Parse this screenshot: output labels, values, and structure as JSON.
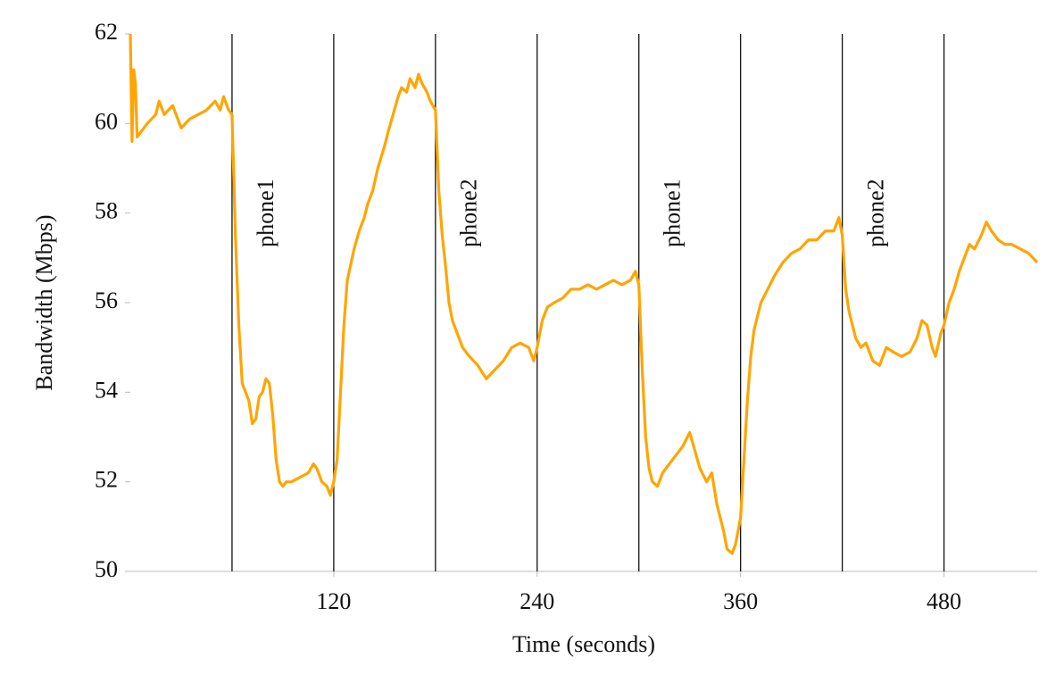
{
  "chart_data": {
    "type": "line",
    "x_label": "Time (seconds)",
    "y_label": "Bandwidth (Mbps)",
    "xlim": [
      0,
      535
    ],
    "ylim": [
      50,
      62
    ],
    "xticks": [
      120,
      240,
      360,
      480
    ],
    "yticks": [
      50,
      52,
      54,
      56,
      58,
      60,
      62
    ],
    "vlines": [
      60,
      120,
      180,
      240,
      300,
      360,
      420,
      480
    ],
    "vline_color": "#111111",
    "annotations": [
      {
        "text": "phone1",
        "x": 81,
        "y": 58
      },
      {
        "text": "phone2",
        "x": 201,
        "y": 58
      },
      {
        "text": "phone1",
        "x": 321,
        "y": 58
      },
      {
        "text": "phone2",
        "x": 441,
        "y": 58
      }
    ],
    "series": [
      {
        "color": "#ffa500",
        "x": [
          0,
          1,
          2,
          3,
          4,
          6,
          10,
          15,
          17,
          20,
          25,
          28,
          30,
          35,
          40,
          45,
          50,
          53,
          55,
          58,
          60,
          62,
          64,
          66,
          68,
          70,
          72,
          74,
          76,
          78,
          80,
          82,
          84,
          86,
          88,
          90,
          92,
          95,
          100,
          105,
          108,
          110,
          113,
          116,
          118,
          120,
          122,
          124,
          126,
          128,
          132,
          135,
          138,
          140,
          143,
          146,
          150,
          152,
          155,
          158,
          160,
          163,
          165,
          168,
          170,
          172,
          175,
          177,
          180,
          182,
          184,
          186,
          188,
          190,
          193,
          196,
          200,
          205,
          210,
          215,
          220,
          225,
          230,
          235,
          238,
          240,
          243,
          246,
          250,
          255,
          260,
          265,
          270,
          275,
          280,
          285,
          290,
          295,
          298,
          300,
          302,
          304,
          306,
          308,
          311,
          314,
          318,
          322,
          326,
          330,
          333,
          336,
          340,
          343,
          346,
          350,
          352,
          355,
          357,
          360,
          362,
          364,
          366,
          368,
          372,
          376,
          380,
          385,
          390,
          395,
          400,
          405,
          410,
          415,
          418,
          420,
          422,
          424,
          426,
          428,
          431,
          434,
          438,
          442,
          446,
          450,
          455,
          460,
          464,
          467,
          470,
          473,
          475,
          478,
          480,
          483,
          486,
          489,
          492,
          495,
          498,
          502,
          505,
          508,
          512,
          516,
          520,
          525,
          530,
          535
        ],
        "values": [
          62,
          59.6,
          61.2,
          60.9,
          59.7,
          59.8,
          60.0,
          60.2,
          60.5,
          60.2,
          60.4,
          60.1,
          59.9,
          60.1,
          60.2,
          60.3,
          60.5,
          60.3,
          60.6,
          60.3,
          60.2,
          57.5,
          55.5,
          54.2,
          54.0,
          53.8,
          53.3,
          53.4,
          53.9,
          54.0,
          54.3,
          54.2,
          53.5,
          52.5,
          52.0,
          51.9,
          52.0,
          52.0,
          52.1,
          52.2,
          52.4,
          52.3,
          52.0,
          51.9,
          51.7,
          52.0,
          52.5,
          54.0,
          55.5,
          56.5,
          57.2,
          57.6,
          57.9,
          58.2,
          58.5,
          59.0,
          59.5,
          59.8,
          60.2,
          60.6,
          60.8,
          60.7,
          61.0,
          60.8,
          61.1,
          60.9,
          60.7,
          60.5,
          60.3,
          58.5,
          57.5,
          56.8,
          56.0,
          55.6,
          55.3,
          55.0,
          54.8,
          54.6,
          54.3,
          54.5,
          54.7,
          55.0,
          55.1,
          55.0,
          54.7,
          55.0,
          55.6,
          55.9,
          56.0,
          56.1,
          56.3,
          56.3,
          56.4,
          56.3,
          56.4,
          56.5,
          56.4,
          56.5,
          56.7,
          56.4,
          54.5,
          53.0,
          52.3,
          52.0,
          51.9,
          52.2,
          52.4,
          52.6,
          52.8,
          53.1,
          52.7,
          52.3,
          52.0,
          52.2,
          51.5,
          50.9,
          50.5,
          50.4,
          50.6,
          51.2,
          52.5,
          53.8,
          54.8,
          55.4,
          56.0,
          56.3,
          56.6,
          56.9,
          57.1,
          57.2,
          57.4,
          57.4,
          57.6,
          57.6,
          57.9,
          57.5,
          56.3,
          55.8,
          55.5,
          55.2,
          55.0,
          55.1,
          54.7,
          54.6,
          55.0,
          54.9,
          54.8,
          54.9,
          55.2,
          55.6,
          55.5,
          55.0,
          54.8,
          55.3,
          55.5,
          56.0,
          56.3,
          56.7,
          57.0,
          57.3,
          57.2,
          57.5,
          57.8,
          57.6,
          57.4,
          57.3,
          57.3,
          57.2,
          57.1,
          56.9
        ]
      }
    ]
  }
}
